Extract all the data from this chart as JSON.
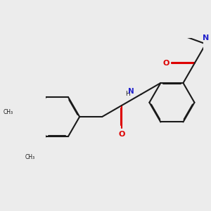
{
  "background_color": "#ececec",
  "bond_color": "#1a1a1a",
  "oxygen_color": "#dd0000",
  "nitrogen_color": "#2222cc",
  "lw": 1.5,
  "dbo": 0.018,
  "figsize": [
    3.0,
    3.0
  ],
  "dpi": 100,
  "xlim": [
    -0.5,
    6.5
  ],
  "ylim": [
    -2.5,
    3.5
  ]
}
